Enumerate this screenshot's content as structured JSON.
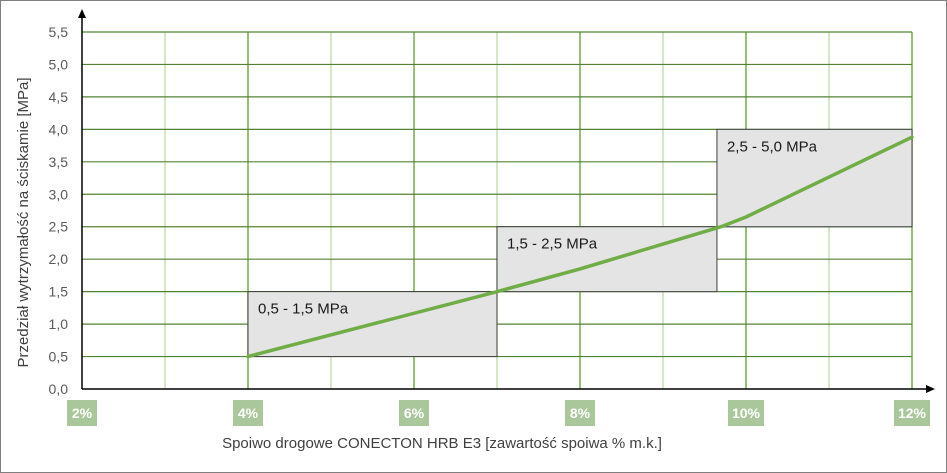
{
  "chart_data": {
    "type": "line",
    "xlabel": "Spoiwo drogowe CONECTON HRB E3  [zawartość spoiwa % m.k.]",
    "ylabel": "Przedział wytrzymałość na ściskamie [MPa]",
    "x_tick_labels": [
      "2%",
      "4%",
      "6%",
      "8%",
      "10%",
      "12%"
    ],
    "y_tick_labels": [
      "0,0",
      "0,5",
      "1,0",
      "1,5",
      "2,0",
      "2,5",
      "3,0",
      "3,5",
      "4,0",
      "4,5",
      "5,0",
      "5,5"
    ],
    "xlim": [
      2,
      12
    ],
    "ylim": [
      0,
      5.5
    ],
    "x_major_step": 2,
    "x_minor_step": 1,
    "y_step": 0.5,
    "grid": true,
    "series": [
      {
        "x": [
          4,
          7,
          8,
          9.7,
          10,
          12
        ],
        "y": [
          0.5,
          1.5,
          1.85,
          2.5,
          2.65,
          3.88
        ]
      }
    ],
    "ranges": [
      {
        "label": "0,5 - 1,5 MPa",
        "x_start": 4,
        "x_end": 7,
        "y_low": 0.5,
        "y_high": 1.5
      },
      {
        "label": "1,5 - 2,5 MPa",
        "x_start": 7,
        "x_end": 9.65,
        "y_low": 1.5,
        "y_high": 2.5
      },
      {
        "label": "2,5 - 5,0 MPa",
        "x_start": 9.65,
        "x_end": 12,
        "y_low": 2.5,
        "y_high": 4.0
      }
    ],
    "colors": {
      "line": "#70ad47",
      "major_grid": "#70ad47",
      "minor_grid": "#c5e0b4",
      "h_grid": "#548235",
      "range_fill": "#e4e4e4",
      "range_border": "#404040",
      "x_tick_bg": "#a9c79a"
    }
  }
}
